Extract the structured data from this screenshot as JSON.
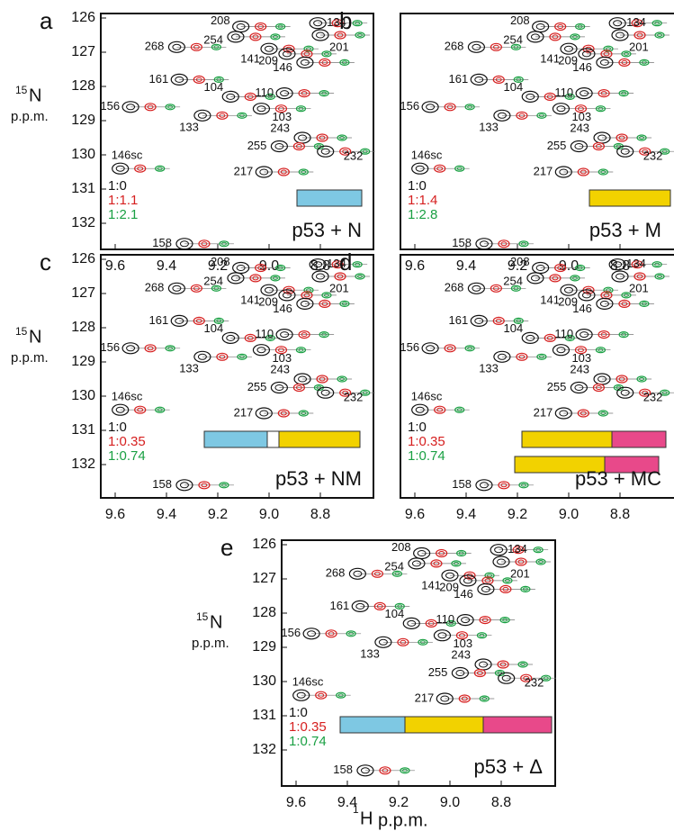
{
  "panels": [
    {
      "letter": "a",
      "title": "p53 + N",
      "ratios": [
        "1:0",
        "1:1.1",
        "1:2.1"
      ],
      "y_axis_label": {
        "sup": "15",
        "main": "N",
        "unit": "p.p.m."
      },
      "x_ticks": [
        "9.6",
        "9.4",
        "9.2",
        "9.0",
        "8.8"
      ],
      "y_ticks": [
        "126",
        "127",
        "128",
        "129",
        "130",
        "131",
        "132"
      ],
      "peaks": [
        "208",
        "254",
        "134",
        "268",
        "141",
        "209",
        "201",
        "146",
        "161",
        "104",
        "110",
        "156",
        "103",
        "133",
        "243",
        "255",
        "232",
        "146sc",
        "217",
        "158"
      ]
    },
    {
      "letter": "b",
      "title": "p53 + M",
      "ratios": [
        "1:0",
        "1:1.4",
        "1:2.8"
      ],
      "x_ticks": [
        "9.6",
        "9.4",
        "9.2",
        "9.0",
        "8.8"
      ],
      "peaks": [
        "208",
        "254",
        "134",
        "268",
        "141",
        "209",
        "201",
        "146",
        "161",
        "104",
        "110",
        "156",
        "103",
        "133",
        "243",
        "255",
        "232",
        "146sc",
        "217",
        "158"
      ]
    },
    {
      "letter": "c",
      "title": "p53 + NM",
      "ratios": [
        "1:0",
        "1:0.35",
        "1:0.74"
      ],
      "y_axis_label": {
        "sup": "15",
        "main": "N",
        "unit": "p.p.m."
      },
      "x_ticks": [
        "9.6",
        "9.4",
        "9.2",
        "9.0",
        "8.8"
      ],
      "y_ticks": [
        "126",
        "127",
        "128",
        "129",
        "130",
        "131",
        "132"
      ],
      "peaks": [
        "208",
        "254",
        "134",
        "268",
        "141",
        "209",
        "201",
        "146",
        "161",
        "104",
        "110",
        "156",
        "103",
        "133",
        "243",
        "255",
        "232",
        "146sc",
        "217",
        "158"
      ]
    },
    {
      "letter": "d",
      "title": "p53 + MC",
      "ratios": [
        "1:0",
        "1:0.35",
        "1:0.74"
      ],
      "x_ticks": [
        "9.6",
        "9.4",
        "9.2",
        "9.0",
        "8.8"
      ],
      "peaks": [
        "208",
        "254",
        "134",
        "268",
        "141",
        "209",
        "201",
        "146",
        "161",
        "104",
        "110",
        "156",
        "103",
        "133",
        "243",
        "255",
        "232",
        "146sc",
        "217",
        "158"
      ]
    },
    {
      "letter": "e",
      "title": "p53 + Δ",
      "ratios": [
        "1:0",
        "1:0.35",
        "1:0.74"
      ],
      "y_axis_label": {
        "sup": "15",
        "main": "N",
        "unit": "p.p.m."
      },
      "x_ticks": [
        "9.6",
        "9.4",
        "9.2",
        "9.0",
        "8.8"
      ],
      "y_ticks": [
        "126",
        "127",
        "128",
        "129",
        "130",
        "131",
        "132"
      ],
      "peaks": [
        "208",
        "254",
        "134",
        "268",
        "141",
        "209",
        "201",
        "146",
        "161",
        "104",
        "110",
        "156",
        "103",
        "133",
        "243",
        "255",
        "232",
        "146sc",
        "217",
        "158"
      ]
    }
  ],
  "x_axis_label": {
    "sup": "1",
    "main": "H",
    "unit": "p.p.m."
  }
}
